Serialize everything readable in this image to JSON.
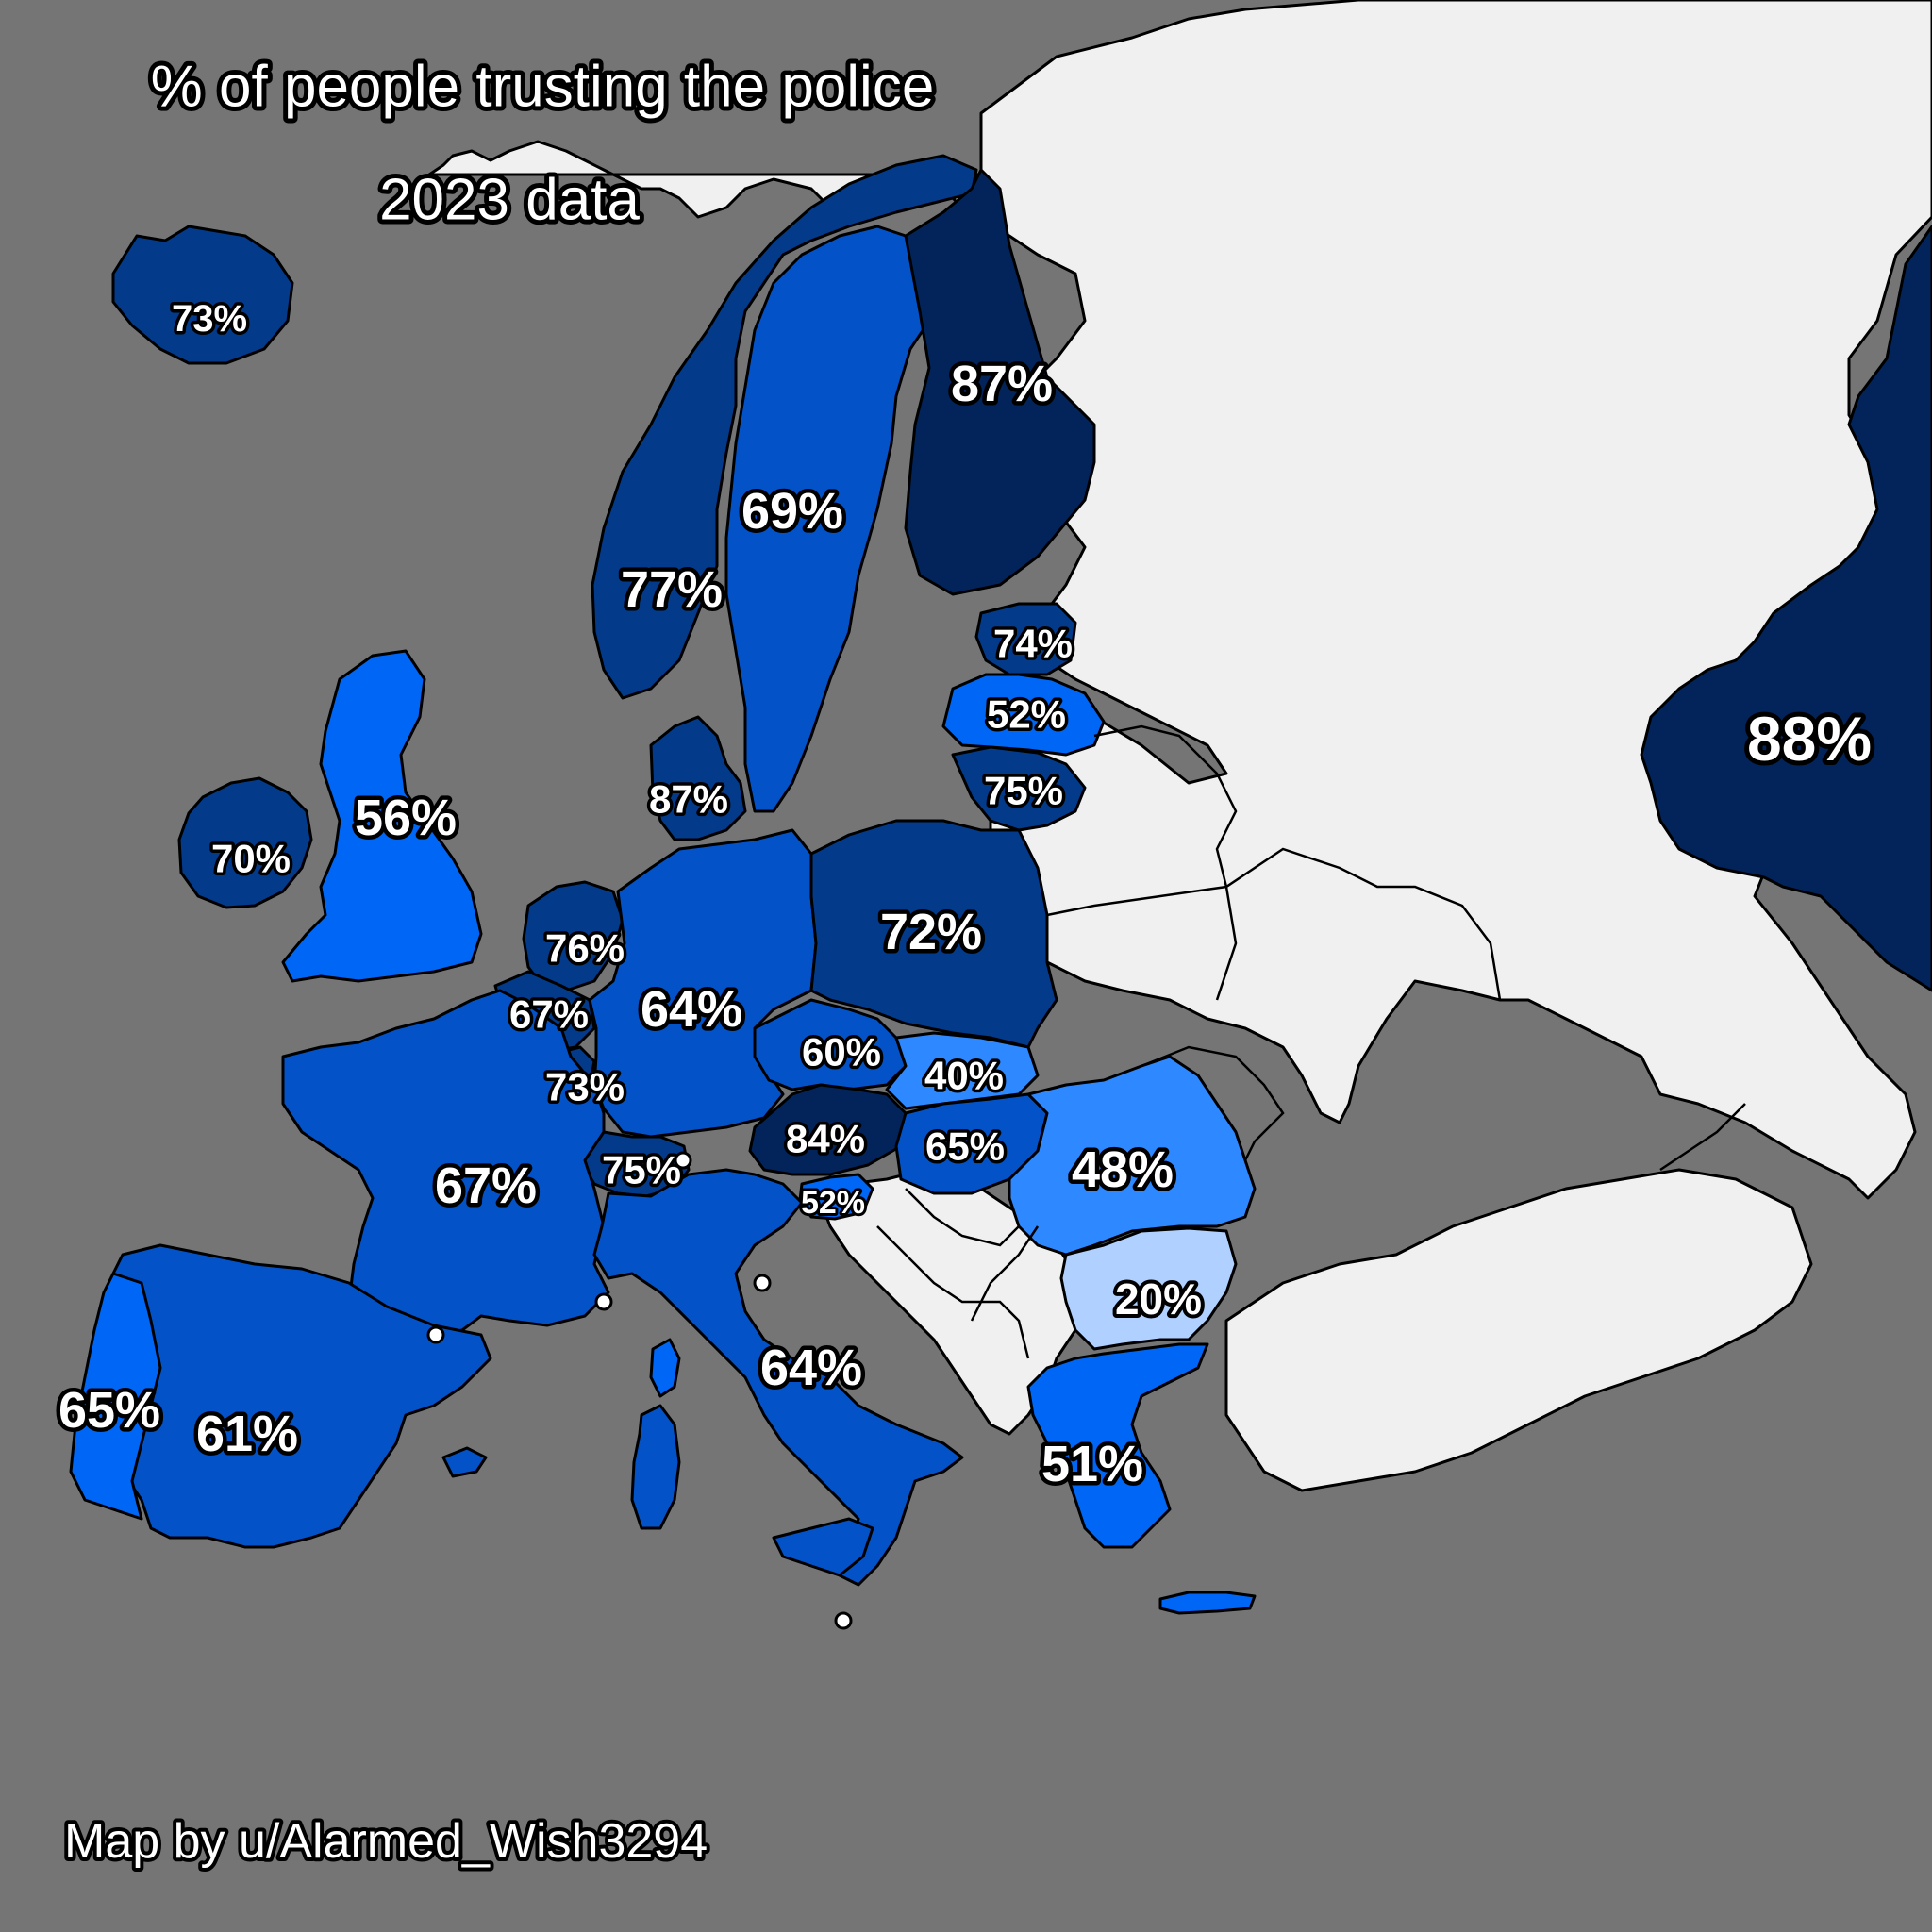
{
  "title": "% of people trusting the police",
  "subtitle": "2023 data",
  "credit": "Map by u/Alarmed_Wish3294",
  "colors": {
    "sea": "#757575",
    "no_data": "#f0f0f0",
    "darkest": "#02245a",
    "dark": "#043a8a",
    "mid": "#0452c8",
    "bright": "#0066f5",
    "light": "#2e88ff",
    "pale": "#b0d0ff"
  },
  "chart_data": {
    "type": "choropleth",
    "metric": "% of people trusting the police",
    "year": 2023,
    "regions": [
      {
        "name": "Iceland",
        "value": 73
      },
      {
        "name": "Norway",
        "value": 77
      },
      {
        "name": "Sweden",
        "value": 69
      },
      {
        "name": "Finland",
        "value": 87
      },
      {
        "name": "Estonia",
        "value": 74
      },
      {
        "name": "Latvia",
        "value": 52
      },
      {
        "name": "Lithuania",
        "value": 75
      },
      {
        "name": "Denmark",
        "value": 87
      },
      {
        "name": "Ireland",
        "value": 70
      },
      {
        "name": "United Kingdom",
        "value": 56
      },
      {
        "name": "Netherlands",
        "value": 76
      },
      {
        "name": "Belgium",
        "value": 67
      },
      {
        "name": "Luxembourg",
        "value": 73
      },
      {
        "name": "Germany",
        "value": 64
      },
      {
        "name": "Poland",
        "value": 72
      },
      {
        "name": "Czechia",
        "value": 60
      },
      {
        "name": "Slovakia",
        "value": 40
      },
      {
        "name": "Austria",
        "value": 84
      },
      {
        "name": "Hungary",
        "value": 65
      },
      {
        "name": "Slovenia",
        "value": 52
      },
      {
        "name": "Switzerland",
        "value": 75
      },
      {
        "name": "France",
        "value": 67
      },
      {
        "name": "Romania",
        "value": 48
      },
      {
        "name": "Bulgaria",
        "value": 20
      },
      {
        "name": "Greece",
        "value": 51
      },
      {
        "name": "Italy",
        "value": 64
      },
      {
        "name": "Spain",
        "value": 61
      },
      {
        "name": "Portugal",
        "value": 65
      },
      {
        "name": "Kazakhstan",
        "value": 88
      }
    ]
  }
}
